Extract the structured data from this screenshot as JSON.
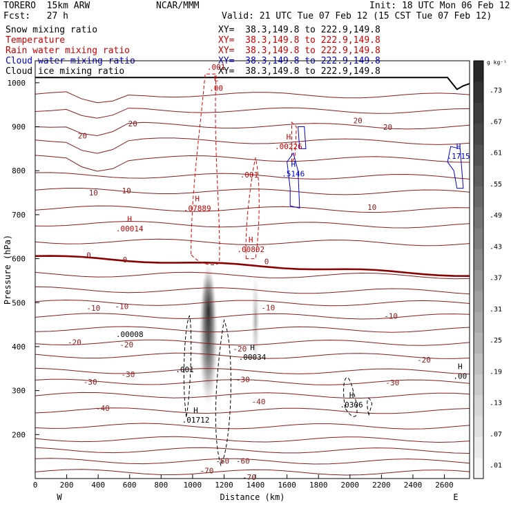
{
  "header": {
    "model": "TORERO  15km ARW",
    "org": "NCAR/MMM",
    "init": "Init: 18 UTC Mon 06 Feb 12",
    "fcst": "Fcst:   27 h",
    "valid": "Valid: 21 UTC Tue 07 Feb 12 (15 CST Tue 07 Feb 12)"
  },
  "fields": [
    {
      "name": "Snow mixing ratio",
      "xy": "XY=  38.3,149.8 to 222.9,149.8",
      "color": "#000000"
    },
    {
      "name": "Temperature",
      "xy": "XY=  38.3,149.8 to 222.9,149.8",
      "color": "#cc0000"
    },
    {
      "name": "Rain water mixing ratio",
      "xy": "XY=  38.3,149.8 to 222.9,149.8",
      "color": "#cc0000"
    },
    {
      "name": "Cloud water mixing ratio",
      "xy": "XY=  38.3,149.8 to 222.9,149.8",
      "color": "#0000cc"
    },
    {
      "name": "Cloud ice mixing ratio",
      "xy": "XY=  38.3,149.8 to 222.9,149.8",
      "color": "#000000"
    }
  ],
  "colorbar": {
    "unit": "g kg⁻¹",
    "ticks": [
      ".73",
      ".67",
      ".61",
      ".55",
      ".49",
      ".43",
      ".37",
      ".31",
      ".25",
      ".19",
      ".13",
      ".07",
      ".01"
    ]
  },
  "chart_data": {
    "type": "cross-section",
    "xlabel": "Distance (km)",
    "ylabel": "Pressure (hPa)",
    "xlim": [
      0,
      2760
    ],
    "ylim": [
      1050,
      100
    ],
    "x_ticks": [
      "0",
      "200",
      "400",
      "600",
      "800",
      "1000",
      "1200",
      "1400",
      "1600",
      "1800",
      "2000",
      "2200",
      "2400",
      "2600"
    ],
    "y_ticks": [
      "200",
      "300",
      "400",
      "500",
      "600",
      "700",
      "800",
      "900",
      "1000"
    ],
    "x_end_labels": {
      "left": "W",
      "right": "E"
    },
    "temperature_isotherms_c": [
      {
        "label": "-70",
        "x_km": 1090,
        "p_hpa": 118
      },
      {
        "label": "-70",
        "x_km": 1360,
        "p_hpa": 103
      },
      {
        "label": "-60",
        "x_km": 1190,
        "p_hpa": 140
      },
      {
        "label": "-60",
        "x_km": 1320,
        "p_hpa": 140
      },
      {
        "label": "-40",
        "x_km": 430,
        "p_hpa": 260
      },
      {
        "label": "-40",
        "x_km": 1420,
        "p_hpa": 275
      },
      {
        "label": "-30",
        "x_km": 350,
        "p_hpa": 320
      },
      {
        "label": "-30",
        "x_km": 590,
        "p_hpa": 337
      },
      {
        "label": "-30",
        "x_km": 1320,
        "p_hpa": 325
      },
      {
        "label": "-30",
        "x_km": 2270,
        "p_hpa": 318
      },
      {
        "label": "-20",
        "x_km": 250,
        "p_hpa": 410
      },
      {
        "label": "-20",
        "x_km": 580,
        "p_hpa": 405
      },
      {
        "label": "-20",
        "x_km": 1300,
        "p_hpa": 395
      },
      {
        "label": "-20",
        "x_km": 2470,
        "p_hpa": 370
      },
      {
        "label": "-10",
        "x_km": 370,
        "p_hpa": 488
      },
      {
        "label": "-10",
        "x_km": 550,
        "p_hpa": 492
      },
      {
        "label": "-10",
        "x_km": 1480,
        "p_hpa": 489
      },
      {
        "label": "-10",
        "x_km": 2260,
        "p_hpa": 470
      },
      {
        "label": "0",
        "x_km": 340,
        "p_hpa": 608
      },
      {
        "label": "0",
        "x_km": 570,
        "p_hpa": 598
      },
      {
        "label": "0",
        "x_km": 1470,
        "p_hpa": 594
      },
      {
        "label": "10",
        "x_km": 370,
        "p_hpa": 750
      },
      {
        "label": "10",
        "x_km": 580,
        "p_hpa": 755
      },
      {
        "label": "10",
        "x_km": 2140,
        "p_hpa": 717
      },
      {
        "label": "20",
        "x_km": 300,
        "p_hpa": 880
      },
      {
        "label": "20",
        "x_km": 620,
        "p_hpa": 907
      },
      {
        "label": "20",
        "x_km": 2050,
        "p_hpa": 914
      },
      {
        "label": "20",
        "x_km": 2240,
        "p_hpa": 899
      }
    ],
    "extrema_labels": [
      {
        "field": "snow",
        "type": "H",
        "value": ".01712",
        "x_km": 1020,
        "p_hpa": 230
      },
      {
        "field": "snow",
        "type": "H",
        "value": ".0306",
        "x_km": 2010,
        "p_hpa": 265
      },
      {
        "field": "snow",
        "type": "H",
        "value": ".00",
        "x_km": 2700,
        "p_hpa": 330
      },
      {
        "field": "cloud_ice",
        "type": "",
        "value": ".001",
        "x_km": 950,
        "p_hpa": 345
      },
      {
        "field": "cloud_ice",
        "type": "H",
        "value": ".00034",
        "x_km": 1380,
        "p_hpa": 373
      },
      {
        "field": "cloud_ice",
        "type": "",
        "value": ".00008",
        "x_km": 600,
        "p_hpa": 425
      },
      {
        "field": "rain",
        "type": "H",
        "value": ".00802",
        "x_km": 1370,
        "p_hpa": 618
      },
      {
        "field": "rain",
        "type": "H",
        "value": ".00014",
        "x_km": 600,
        "p_hpa": 665
      },
      {
        "field": "rain",
        "type": "H",
        "value": ".07889",
        "x_km": 1030,
        "p_hpa": 712
      },
      {
        "field": "rain",
        "type": "",
        "value": ".001",
        "x_km": 1360,
        "p_hpa": 788
      },
      {
        "field": "rain",
        "type": "H",
        "value": ".00226",
        "x_km": 1610,
        "p_hpa": 852
      },
      {
        "field": "cloud_water",
        "type": "H",
        "value": ".5146",
        "x_km": 1640,
        "p_hpa": 790
      },
      {
        "field": "cloud_water",
        "type": "H",
        "value": ".1715",
        "x_km": 2690,
        "p_hpa": 830
      },
      {
        "field": "rain",
        "type": "L",
        "value": ".00",
        "x_km": 1150,
        "p_hpa": 985
      },
      {
        "field": "rain",
        "type": "",
        "value": ".001",
        "x_km": 1150,
        "p_hpa": 1033
      }
    ]
  }
}
